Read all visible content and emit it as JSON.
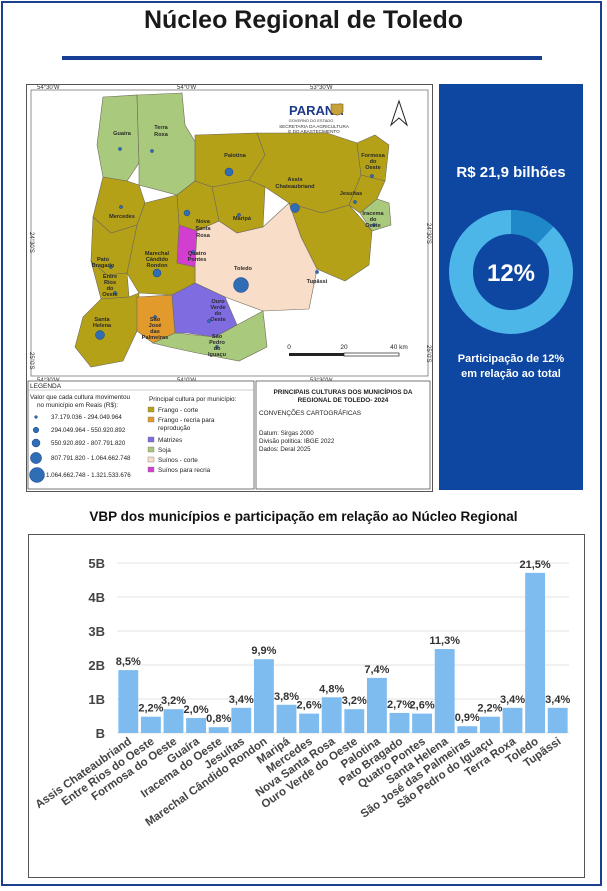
{
  "title": "Núcleo Regional de Toledo",
  "map": {
    "brand": "PARANÁ",
    "brand_sub": "GOVERNO DO ESTADO",
    "agency_line1": "SECRETARIA DA AGRICULTURA",
    "agency_line2": "E DO ABASTECIMENTO",
    "coord_top": [
      "54°30'W",
      "54°0'W",
      "53°30'W"
    ],
    "coord_bottom": [
      "54°30'W",
      "54°0'W",
      "53°30'W"
    ],
    "coord_left": [
      "24°30'S",
      "25°0'S"
    ],
    "coord_right": [
      "24°30'S",
      "25°0'S"
    ],
    "scale": [
      "0",
      "20",
      "40 km"
    ],
    "legend_title": "LEGENDA",
    "legend_value_heading_1": "Valor que cada cultura movimentou",
    "legend_value_heading_2": "no município em Reais (R$):",
    "legend_values": [
      "37.179.036 - 294.049.964",
      "294.049.964 - 550.920.892",
      "550.920.892 - 807.791.820",
      "807.791.820 - 1.064.662.748",
      "1.064.662.748 - 1.321.533.676"
    ],
    "legend_crop_heading": "Principal cultura por município:",
    "legend_crops": [
      {
        "label": "Frango - corte",
        "color": "#b5a117"
      },
      {
        "label": "Frango - recria para",
        "label2": "reprodução",
        "color": "#e39a2d"
      },
      {
        "label": "Matrizes",
        "color": "#7f6ce0"
      },
      {
        "label": "Soja",
        "color": "#a9c97d"
      },
      {
        "label": "Suínos - corte",
        "color": "#f8ddc9"
      },
      {
        "label": "Suínos para recria",
        "color": "#d23fd0"
      }
    ],
    "card_title_1": "PRINCIPAIS CULTURAS DOS MUNICÍPIOS DA",
    "card_title_2": "REGIONAL DE TOLEDO- 2024",
    "card_conventions": "CONVENÇÕES CARTOGRÁFICAS",
    "card_lines": [
      "Datum: Sirgas 2000",
      "Divisão política: IBGE 2022",
      "Dados: Deral 2025"
    ],
    "places": {
      "guaira": "Guaíra",
      "terra_roxa_1": "Terra",
      "terra_roxa_2": "Roxa",
      "palotina": "Palotina",
      "assis_1": "Assis",
      "assis_2": "Chateaubriand",
      "formosa_1": "Formosa",
      "formosa_2": "do",
      "formosa_3": "Oeste",
      "jesuitas": "Jesuítas",
      "iracema_1": "Iracema",
      "iracema_2": "do",
      "iracema_3": "Oeste",
      "mercedes": "Mercedes",
      "nova_1": "Nova",
      "nova_2": "Santa",
      "nova_3": "Rosa",
      "maripa": "Maripá",
      "quatro_1": "Quatro",
      "quatro_2": "Pontes",
      "toledo": "Toledo",
      "tupassi": "Tupãssi",
      "pato_1": "Pato",
      "pato_2": "Bragado",
      "entre_1": "Entre",
      "entre_2": "Rios",
      "entre_3": "do",
      "entre_4": "Oeste",
      "mcr_1": "Marechal",
      "mcr_2": "Cândido",
      "mcr_3": "Rondon",
      "ouro_1": "Ouro",
      "ouro_2": "Verde",
      "ouro_3": "do",
      "ouro_4": "Oeste",
      "santa_1": "Santa",
      "santa_2": "Helena",
      "sjp_1": "São",
      "sjp_2": "José",
      "sjp_3": "das",
      "sjp_4": "Palmeiras",
      "spi_1": "São",
      "spi_2": "Pedro",
      "spi_3": "do",
      "spi_4": "Iguaçu"
    }
  },
  "summary": {
    "amount": "R$ 21,9 bilhões",
    "share_label": "12%",
    "share_value": 0.12,
    "caption_line1": "Participação de 12%",
    "caption_line2": "em relação ao total",
    "colors": {
      "panel": "#0d47a1",
      "ring_main": "#4db6e8",
      "ring_part": "#1e88c8"
    }
  },
  "chart_heading": "VBP dos municípios e participação em relação ao Núcleo Regional",
  "chart_data": {
    "type": "bar",
    "categories": [
      "Assis Chateaubriand",
      "Entre Rios do Oeste",
      "Formosa do Oeste",
      "Guaíra",
      "Iracema do Oeste",
      "Jesuítas",
      "Marechal Cândido Rondon",
      "Maripá",
      "Mercedes",
      "Nova Santa Rosa",
      "Ouro Verde do Oeste",
      "Palotina",
      "Pato Bragado",
      "Quatro Pontes",
      "Santa Helena",
      "São José das Palmeiras",
      "São Pedro do Iguaçu",
      "Terra Roxa",
      "Toledo",
      "Tupãssi"
    ],
    "values": [
      1.85,
      0.48,
      0.7,
      0.44,
      0.17,
      0.74,
      2.17,
      0.83,
      0.57,
      1.05,
      0.7,
      1.62,
      0.59,
      0.57,
      2.47,
      0.2,
      0.48,
      0.74,
      4.71,
      0.74
    ],
    "labels": [
      "8,5%",
      "2,2%",
      "3,2%",
      "2,0%",
      "0,8%",
      "3,4%",
      "9,9%",
      "3,8%",
      "2,6%",
      "4,8%",
      "3,2%",
      "7,4%",
      "2,7%",
      "2,6%",
      "11,3%",
      "0,9%",
      "2,2%",
      "3,4%",
      "21,5%",
      "3,4%"
    ],
    "y_ticks": [
      "B",
      "1B",
      "2B",
      "3B",
      "4B",
      "5B"
    ],
    "ylim": [
      0,
      5
    ],
    "bar_color": "#7ebcf0",
    "grid": true
  }
}
